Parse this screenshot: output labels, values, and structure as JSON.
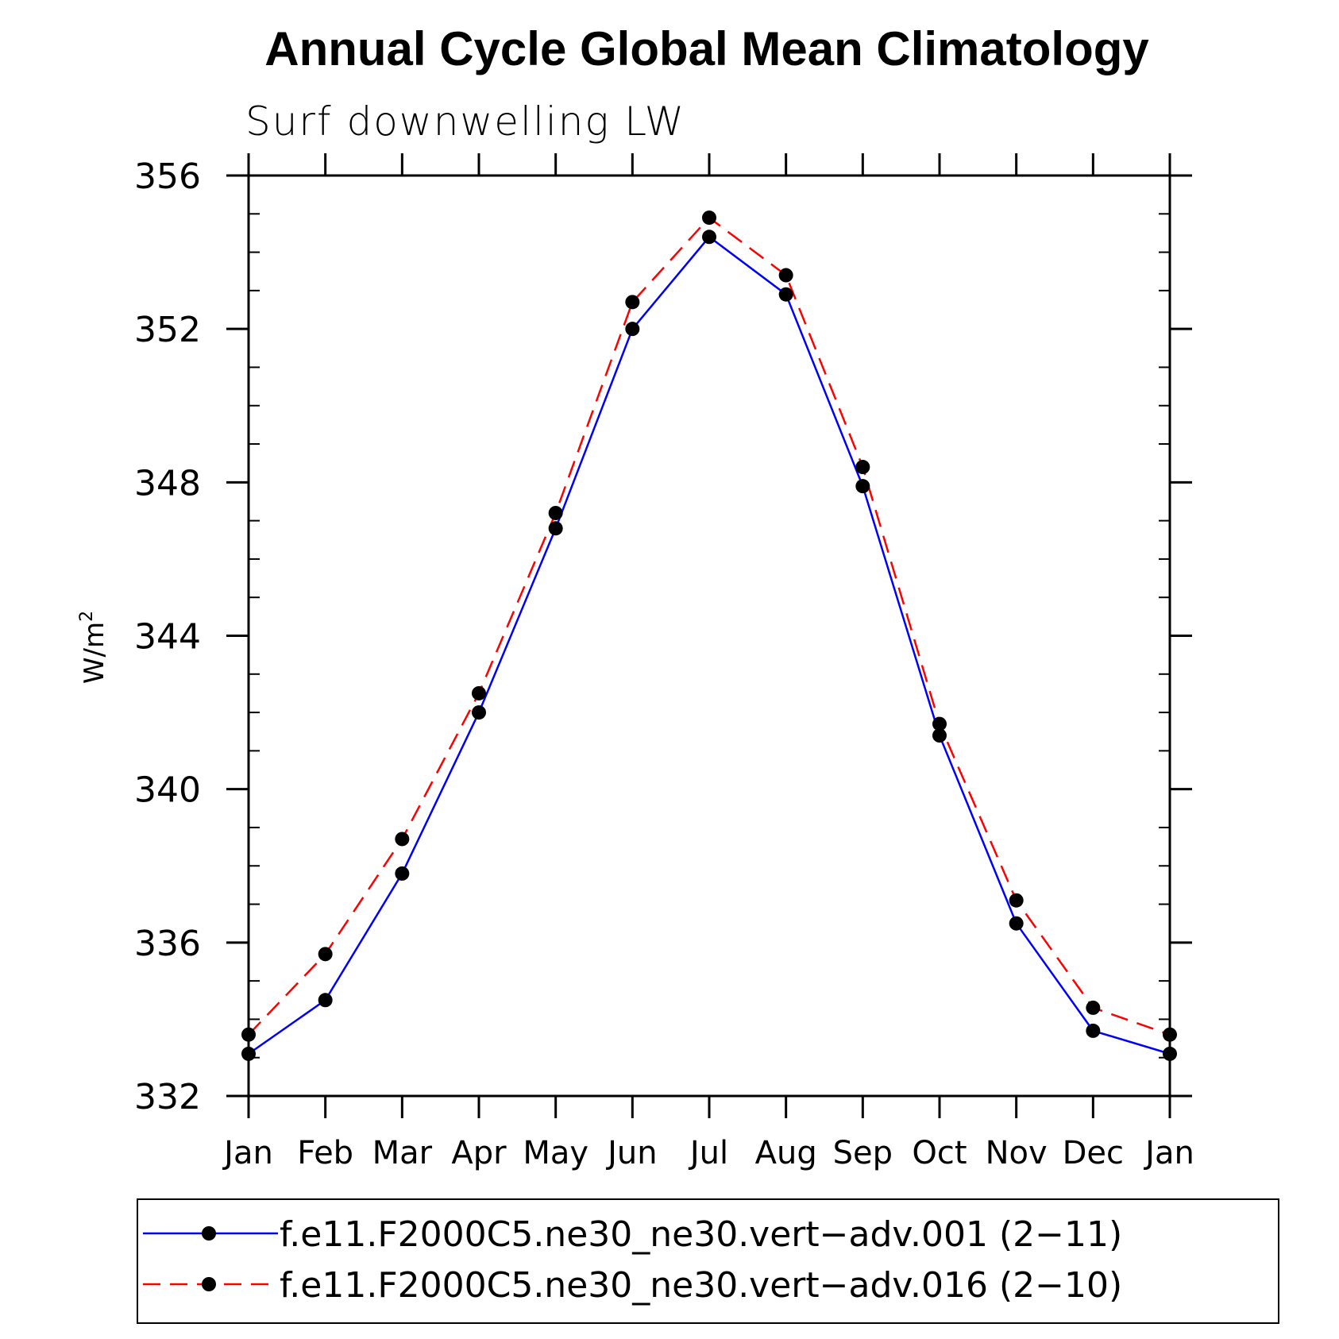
{
  "chart_data": {
    "type": "line",
    "title": "Annual Cycle Global Mean Climatology",
    "subtitle": "Surf downwelling LW",
    "ylabel_base": "W/m",
    "ylabel_sup": "2",
    "xlabel": "",
    "categories": [
      "Jan",
      "Feb",
      "Mar",
      "Apr",
      "May",
      "Jun",
      "Jul",
      "Aug",
      "Sep",
      "Oct",
      "Nov",
      "Dec",
      "Jan"
    ],
    "ylim": [
      332,
      356
    ],
    "yticks": [
      332,
      336,
      340,
      344,
      348,
      352,
      356
    ],
    "ytick_labels": [
      "332",
      "336",
      "340",
      "344",
      "348",
      "352",
      "356"
    ],
    "series": [
      {
        "name": "f.e11.F2000C5.ne30_ne30.vert−adv.001 (2−11)",
        "color": "#0000ff",
        "style": "solid",
        "values": [
          333.1,
          334.5,
          337.8,
          342.0,
          346.8,
          352.0,
          354.4,
          352.9,
          347.9,
          341.4,
          336.5,
          333.7,
          333.1
        ]
      },
      {
        "name": "f.e11.F2000C5.ne30_ne30.vert−adv.016 (2−10)",
        "color": "#ff0000",
        "style": "dashed",
        "values": [
          333.6,
          335.7,
          338.7,
          342.5,
          347.2,
          352.7,
          354.9,
          353.4,
          348.4,
          341.7,
          337.1,
          334.3,
          333.6
        ]
      }
    ],
    "marker_color": "#000000",
    "legend_position": "bottom"
  }
}
